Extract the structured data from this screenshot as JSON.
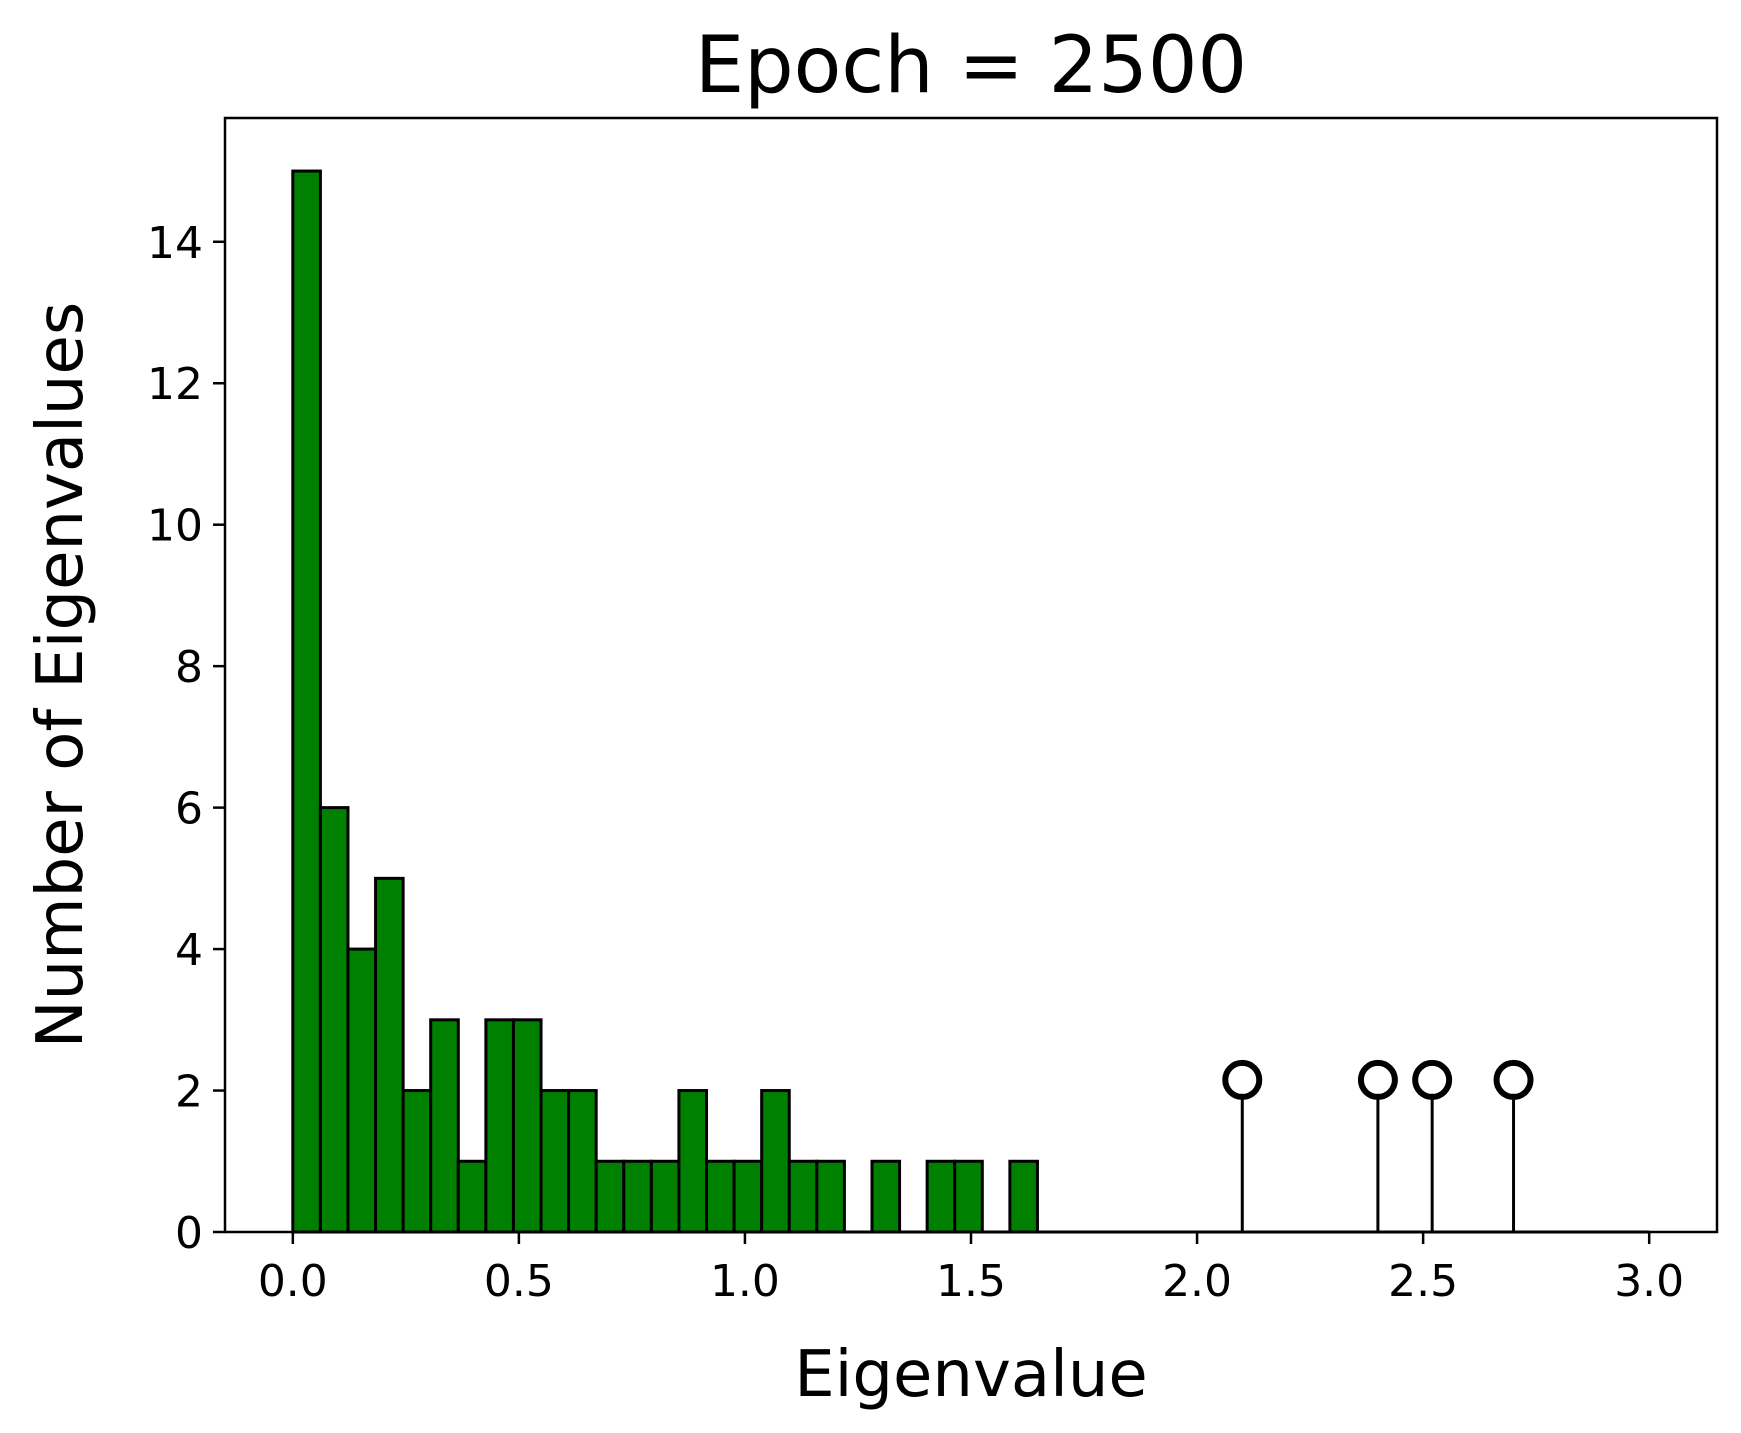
{
  "chart_data": {
    "type": "bar",
    "title": "Epoch = 2500",
    "xlabel": "Eigenvalue",
    "ylabel": "Number of Eigenvalues",
    "xlim": [
      -0.15,
      3.15
    ],
    "ylim": [
      0,
      15.75
    ],
    "xticks": [
      "0.0",
      "0.5",
      "1.0",
      "1.5",
      "2.0",
      "2.5",
      "3.0"
    ],
    "yticks": [
      "0",
      "2",
      "4",
      "6",
      "8",
      "10",
      "12",
      "14"
    ],
    "grid": false,
    "colors": {
      "bar_fill": "#008000",
      "bar_edge": "#000000",
      "stem": "#000000",
      "marker": "#000000"
    },
    "series": [
      {
        "kind": "histogram",
        "bin_width": 0.061,
        "bins": [
          {
            "x0": 0.0,
            "count": 15
          },
          {
            "x0": 0.061,
            "count": 6
          },
          {
            "x0": 0.122,
            "count": 4
          },
          {
            "x0": 0.183,
            "count": 5
          },
          {
            "x0": 0.244,
            "count": 2
          },
          {
            "x0": 0.305,
            "count": 3
          },
          {
            "x0": 0.366,
            "count": 1
          },
          {
            "x0": 0.427,
            "count": 3
          },
          {
            "x0": 0.488,
            "count": 3
          },
          {
            "x0": 0.549,
            "count": 2
          },
          {
            "x0": 0.61,
            "count": 2
          },
          {
            "x0": 0.671,
            "count": 1
          },
          {
            "x0": 0.732,
            "count": 1
          },
          {
            "x0": 0.793,
            "count": 1
          },
          {
            "x0": 0.854,
            "count": 2
          },
          {
            "x0": 0.915,
            "count": 1
          },
          {
            "x0": 0.976,
            "count": 1
          },
          {
            "x0": 1.037,
            "count": 2
          },
          {
            "x0": 1.098,
            "count": 1
          },
          {
            "x0": 1.159,
            "count": 1
          },
          {
            "x0": 1.281,
            "count": 1
          },
          {
            "x0": 1.403,
            "count": 1
          },
          {
            "x0": 1.464,
            "count": 1
          },
          {
            "x0": 1.586,
            "count": 1
          }
        ]
      },
      {
        "kind": "stem",
        "marker": "open-circle",
        "points": [
          {
            "x": 2.1,
            "y": 2.15
          },
          {
            "x": 2.4,
            "y": 2.15
          },
          {
            "x": 2.52,
            "y": 2.15
          },
          {
            "x": 2.7,
            "y": 2.15
          }
        ]
      }
    ],
    "baseline": {
      "x_from": 0.0,
      "x_to": 3.0,
      "y": 0
    }
  }
}
